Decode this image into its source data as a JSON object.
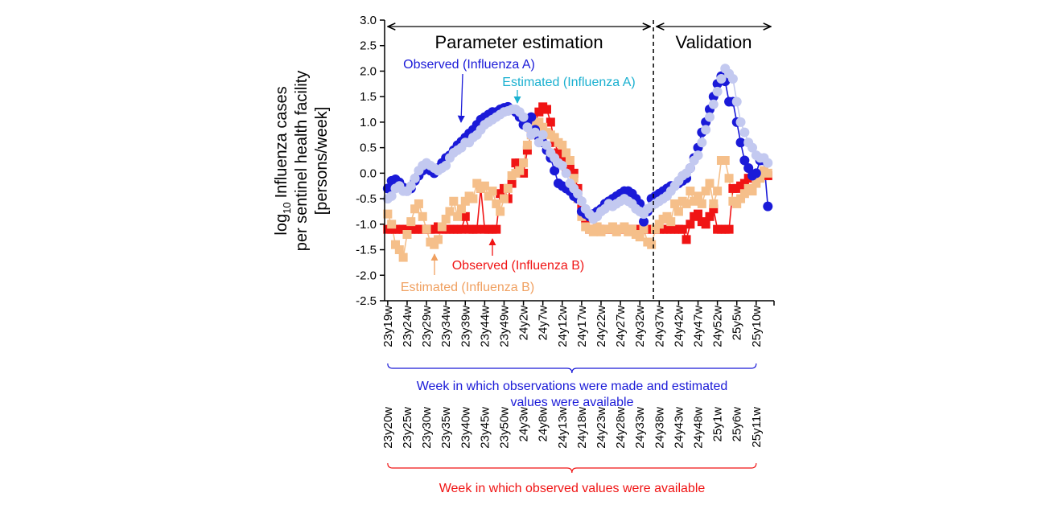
{
  "chart_data": {
    "type": "line",
    "ylabel_lines": [
      [
        "log",
        "10",
        "Influenza cases"
      ],
      "per sentinel health facility",
      "[persons/week]"
    ],
    "xlim": [
      -0.8,
      99.6
    ],
    "ylim": [
      -2.5,
      3.0
    ],
    "yticks": [
      {
        "value": 3.0,
        "label": "3.0"
      },
      {
        "value": 2.5,
        "label": "2.5"
      },
      {
        "value": 2.0,
        "label": "2.0"
      },
      {
        "value": 1.5,
        "label": "1.5"
      },
      {
        "value": 1.0,
        "label": "1.0"
      },
      {
        "value": 0.5,
        "label": "0.5"
      },
      {
        "value": 0.0,
        "label": "0.0"
      },
      {
        "value": -0.5,
        "label": "-0.5"
      },
      {
        "value": -1.0,
        "label": "-1.0"
      },
      {
        "value": -1.5,
        "label": "-1.5"
      },
      {
        "value": -2.0,
        "label": "-2.0"
      },
      {
        "value": -2.5,
        "label": "-2.5"
      }
    ],
    "xticks": [
      {
        "value": 0,
        "label": "23y19w"
      },
      {
        "value": 5,
        "label": "23y24w"
      },
      {
        "value": 10,
        "label": "23y29w"
      },
      {
        "value": 15,
        "label": "23y34w"
      },
      {
        "value": 20,
        "label": "23y39w"
      },
      {
        "value": 25,
        "label": "23y44w"
      },
      {
        "value": 30,
        "label": "23y49w"
      },
      {
        "value": 35,
        "label": "24y2w"
      },
      {
        "value": 40,
        "label": "24y7w"
      },
      {
        "value": 45,
        "label": "24y12w"
      },
      {
        "value": 50,
        "label": "24y17w"
      },
      {
        "value": 55,
        "label": "24y22w"
      },
      {
        "value": 60,
        "label": "24y27w"
      },
      {
        "value": 65,
        "label": "24y32w"
      },
      {
        "value": 70,
        "label": "24y37w"
      },
      {
        "value": 75,
        "label": "24y42w"
      },
      {
        "value": 80,
        "label": "24y47w"
      },
      {
        "value": 85,
        "label": "24y52w"
      },
      {
        "value": 90,
        "label": "25y5w"
      },
      {
        "value": 95,
        "label": "25y10w"
      }
    ],
    "xticks_secondary": [
      {
        "value": 0,
        "label": "23y20w"
      },
      {
        "value": 5,
        "label": "23y25w"
      },
      {
        "value": 10,
        "label": "23y30w"
      },
      {
        "value": 15,
        "label": "23y35w"
      },
      {
        "value": 20,
        "label": "23y40w"
      },
      {
        "value": 25,
        "label": "23y45w"
      },
      {
        "value": 30,
        "label": "23y50w"
      },
      {
        "value": 35,
        "label": "24y3w"
      },
      {
        "value": 40,
        "label": "24y8w"
      },
      {
        "value": 45,
        "label": "24y13w"
      },
      {
        "value": 50,
        "label": "24y18w"
      },
      {
        "value": 55,
        "label": "24y23w"
      },
      {
        "value": 60,
        "label": "24y28w"
      },
      {
        "value": 65,
        "label": "24y33w"
      },
      {
        "value": 70,
        "label": "24y38w"
      },
      {
        "value": 75,
        "label": "24y43w"
      },
      {
        "value": 80,
        "label": "24y48w"
      },
      {
        "value": 85,
        "label": "25y1w"
      },
      {
        "value": 90,
        "label": "25y6w"
      },
      {
        "value": 95,
        "label": "25y11w"
      }
    ],
    "split_at": 68.5,
    "period_labels": [
      "Parameter estimation",
      "Validation"
    ],
    "xlabel_primary": [
      "Week in which observations were made   and estimated",
      "values were available"
    ],
    "xlabel_secondary": "Week in which observed values were available",
    "x": [
      0,
      1,
      2,
      3,
      4,
      5,
      6,
      7,
      8,
      9,
      10,
      11,
      12,
      13,
      14,
      15,
      16,
      17,
      18,
      19,
      20,
      21,
      22,
      23,
      24,
      25,
      26,
      27,
      28,
      29,
      30,
      31,
      32,
      33,
      34,
      35,
      36,
      37,
      38,
      39,
      40,
      41,
      42,
      43,
      44,
      45,
      46,
      47,
      48,
      49,
      50,
      51,
      52,
      53,
      54,
      55,
      56,
      57,
      58,
      59,
      60,
      61,
      62,
      63,
      64,
      65,
      66,
      67,
      68,
      69,
      70,
      71,
      72,
      73,
      74,
      75,
      76,
      77,
      78,
      79,
      80,
      81,
      82,
      83,
      84,
      85,
      86,
      87,
      88,
      89,
      90,
      91,
      92,
      93,
      94,
      95,
      96,
      97,
      98
    ],
    "series": [
      {
        "name": "Observed (Influenza B)",
        "color": "#f01414",
        "marker": "square",
        "values": [
          -1.1,
          -1.1,
          -1.1,
          -1.1,
          -1.1,
          -1.1,
          -1.1,
          -1.1,
          -1.1,
          -1.1,
          -1.1,
          -1.1,
          -1.1,
          -1.05,
          -1.1,
          -1.1,
          -1.1,
          -1.1,
          -1.1,
          -1.1,
          -0.85,
          -1.1,
          -1.1,
          -1.1,
          -0.3,
          -1.1,
          -1.1,
          -1.1,
          -1.1,
          -0.4,
          -0.3,
          -0.5,
          -0.2,
          0.2,
          0.2,
          0.0,
          0.45,
          0.8,
          1.0,
          1.2,
          1.3,
          1.25,
          1.0,
          0.6,
          0.4,
          0.3,
          0.1,
          0.1,
          0.0,
          -0.3,
          -0.7,
          -0.9,
          -1.1,
          -1.1,
          -1.1,
          -1.1,
          -1.1,
          -1.1,
          -1.1,
          -1.1,
          -1.1,
          -1.1,
          -1.1,
          -1.1,
          -1.1,
          -1.1,
          -1.1,
          -1.1,
          -1.1,
          -1.1,
          -1.1,
          -1.1,
          -1.1,
          -1.1,
          -1.1,
          -1.1,
          -1.1,
          -1.3,
          -1.0,
          -0.85,
          -0.8,
          -0.95,
          -1.0,
          -0.85,
          -0.7,
          -1.1,
          -1.1,
          -1.1,
          -1.1,
          -0.3,
          -0.3,
          -0.25,
          -0.2,
          -0.1,
          -0.05,
          -0.1,
          -0.05,
          0.0,
          -0.05
        ]
      },
      {
        "name": "Estimated (Influenza B)",
        "color": "#f5bf8a",
        "marker": "square",
        "values": [
          -0.8,
          -1.0,
          -1.4,
          -1.5,
          -1.65,
          -1.2,
          -0.95,
          -0.7,
          -0.6,
          -0.85,
          -1.1,
          -1.35,
          -1.4,
          -1.3,
          -1.05,
          -0.9,
          -0.75,
          -0.55,
          -0.85,
          -0.7,
          -0.55,
          -0.45,
          -0.5,
          -0.2,
          -0.3,
          -0.25,
          -0.45,
          -0.35,
          -0.6,
          -0.75,
          -0.5,
          -0.3,
          -0.05,
          0.0,
          0.05,
          0.2,
          0.55,
          0.75,
          0.95,
          1.0,
          0.9,
          0.8,
          0.75,
          0.7,
          0.6,
          0.55,
          0.4,
          0.25,
          -0.1,
          -0.5,
          -0.85,
          -1.05,
          -1.1,
          -1.15,
          -1.05,
          -1.15,
          -1.1,
          -1.1,
          -1.05,
          -1.15,
          -1.1,
          -1.05,
          -1.15,
          -1.1,
          -1.2,
          -1.25,
          -1.1,
          -1.35,
          -1.4,
          -1.1,
          -1.0,
          -0.9,
          -0.85,
          -0.95,
          -0.6,
          -0.75,
          -0.55,
          -0.6,
          -0.35,
          -0.55,
          -0.45,
          -0.6,
          -0.35,
          -0.2,
          -0.6,
          -0.35,
          0.25,
          0.25,
          -0.1,
          -0.55,
          -0.6,
          -0.5,
          -0.4,
          -0.3,
          -0.35,
          -0.2,
          -0.1,
          0.05,
          0.0
        ]
      },
      {
        "name": "Observed (Influenza A)",
        "color": "#1a1ad8",
        "marker": "circle",
        "values": [
          -0.3,
          -0.15,
          -0.12,
          -0.18,
          -0.28,
          -0.35,
          -0.3,
          -0.15,
          -0.05,
          0.05,
          0.1,
          0.05,
          0.0,
          0.1,
          0.2,
          0.3,
          0.35,
          0.45,
          0.55,
          0.62,
          0.7,
          0.78,
          0.85,
          0.95,
          1.05,
          1.1,
          1.15,
          1.2,
          1.2,
          1.25,
          1.28,
          1.3,
          1.25,
          1.2,
          1.1,
          0.95,
          1.0,
          1.1,
          0.85,
          0.7,
          0.6,
          0.45,
          0.3,
          0.05,
          -0.2,
          -0.25,
          -0.3,
          -0.35,
          -0.45,
          -0.5,
          -0.75,
          -0.8,
          -0.85,
          -0.8,
          -0.75,
          -0.7,
          -0.6,
          -0.55,
          -0.5,
          -0.45,
          -0.4,
          -0.35,
          -0.35,
          -0.4,
          -0.5,
          -0.6,
          -0.95,
          -0.75,
          -0.5,
          -0.45,
          -0.4,
          -0.35,
          -0.3,
          -0.25,
          -0.25,
          -0.2,
          -0.15,
          -0.1,
          0.1,
          0.3,
          0.5,
          0.8,
          1.0,
          1.25,
          1.5,
          1.75,
          1.9,
          1.8,
          1.4,
          1.4,
          1.0,
          0.6,
          0.25,
          0.1,
          -0.05,
          0.0,
          0.25,
          0.25,
          -0.65
        ]
      },
      {
        "name": "Estimated (Influenza A)",
        "color": "#c3c9f0",
        "marker": "circle",
        "values": [
          -0.5,
          -0.45,
          -0.3,
          -0.25,
          -0.35,
          -0.35,
          -0.25,
          -0.1,
          0.05,
          0.15,
          0.2,
          0.15,
          0.1,
          0.05,
          0.1,
          0.15,
          0.3,
          0.4,
          0.45,
          0.5,
          0.6,
          0.6,
          0.7,
          0.75,
          0.85,
          0.95,
          1.0,
          1.05,
          1.1,
          1.15,
          1.2,
          1.22,
          1.25,
          1.25,
          1.2,
          1.1,
          0.9,
          0.75,
          0.8,
          0.6,
          0.75,
          0.55,
          0.4,
          0.3,
          0.2,
          0.15,
          0.0,
          -0.2,
          -0.3,
          -0.4,
          -0.55,
          -0.7,
          -0.8,
          -0.9,
          -0.85,
          -0.75,
          -0.7,
          -0.6,
          -0.65,
          -0.6,
          -0.55,
          -0.5,
          -0.55,
          -0.6,
          -0.7,
          -0.75,
          -0.8,
          -0.7,
          -0.65,
          -0.6,
          -0.55,
          -0.5,
          -0.45,
          -0.35,
          -0.25,
          -0.15,
          -0.05,
          0.0,
          0.1,
          0.25,
          0.35,
          0.6,
          0.85,
          1.1,
          1.35,
          1.6,
          1.85,
          2.05,
          1.95,
          1.85,
          1.4,
          1.0,
          0.8,
          0.6,
          0.5,
          0.35,
          0.3,
          0.3,
          0.2
        ]
      }
    ]
  }
}
